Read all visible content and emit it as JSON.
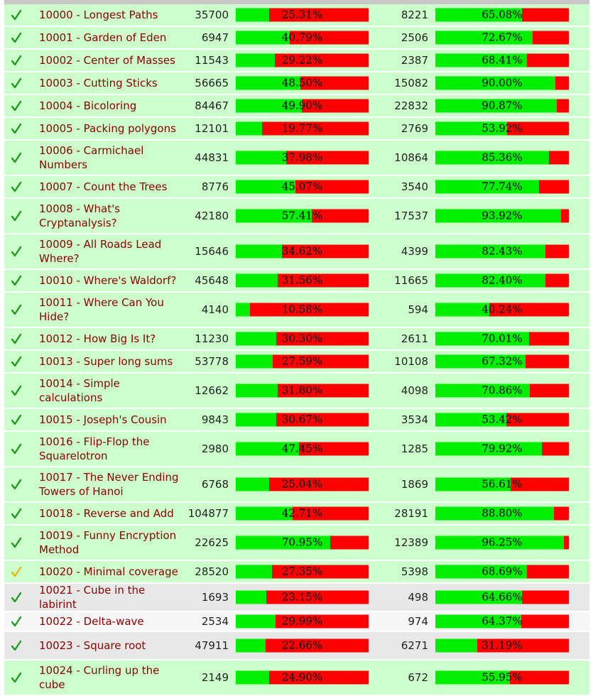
{
  "colors": {
    "row_accepted": "#ccffcc",
    "row_grey": "#e8e8e8",
    "row_light": "#f6f6f6",
    "bar_green": "#00ee00",
    "bar_red": "#ff0000",
    "title_link": "#8b0000",
    "check_green": "#1e9b1e",
    "check_yellow": "#e6b800"
  },
  "problems": [
    {
      "title": "10000 - Longest Paths",
      "submissions": "35700",
      "sub_ratio": "25.31%",
      "sub_value": 25.31,
      "users": "8221",
      "user_ratio": "65.08%",
      "user_value": 65.08,
      "status_icon": "check-green-icon",
      "row_bg": "accepted"
    },
    {
      "title": "10001 - Garden of Eden",
      "submissions": "6947",
      "sub_ratio": "40.79%",
      "sub_value": 40.79,
      "users": "2506",
      "user_ratio": "72.67%",
      "user_value": 72.67,
      "status_icon": "check-green-icon",
      "row_bg": "accepted"
    },
    {
      "title": "10002 - Center of Masses",
      "submissions": "11543",
      "sub_ratio": "29.22%",
      "sub_value": 29.22,
      "users": "2387",
      "user_ratio": "68.41%",
      "user_value": 68.41,
      "status_icon": "check-green-icon",
      "row_bg": "accepted"
    },
    {
      "title": "10003 - Cutting Sticks",
      "submissions": "56665",
      "sub_ratio": "48.50%",
      "sub_value": 48.5,
      "users": "15082",
      "user_ratio": "90.00%",
      "user_value": 90.0,
      "status_icon": "check-green-icon",
      "row_bg": "accepted"
    },
    {
      "title": "10004 - Bicoloring",
      "submissions": "84467",
      "sub_ratio": "49.90%",
      "sub_value": 49.9,
      "users": "22832",
      "user_ratio": "90.87%",
      "user_value": 90.87,
      "status_icon": "check-green-icon",
      "row_bg": "accepted"
    },
    {
      "title": "10005 - Packing polygons",
      "submissions": "12101",
      "sub_ratio": "19.77%",
      "sub_value": 19.77,
      "users": "2769",
      "user_ratio": "53.92%",
      "user_value": 53.92,
      "status_icon": "check-green-icon",
      "row_bg": "accepted"
    },
    {
      "title": "10006 - Carmichael Numbers",
      "submissions": "44831",
      "sub_ratio": "37.98%",
      "sub_value": 37.98,
      "users": "10864",
      "user_ratio": "85.36%",
      "user_value": 85.36,
      "status_icon": "check-green-icon",
      "row_bg": "accepted"
    },
    {
      "title": "10007 - Count the Trees",
      "submissions": "8776",
      "sub_ratio": "45.07%",
      "sub_value": 45.07,
      "users": "3540",
      "user_ratio": "77.74%",
      "user_value": 77.74,
      "status_icon": "check-green-icon",
      "row_bg": "accepted"
    },
    {
      "title": "10008 - What's Cryptanalysis?",
      "submissions": "42180",
      "sub_ratio": "57.41%",
      "sub_value": 57.41,
      "users": "17537",
      "user_ratio": "93.92%",
      "user_value": 93.92,
      "status_icon": "check-green-icon",
      "row_bg": "accepted"
    },
    {
      "title": "10009 - All Roads Lead Where?",
      "submissions": "15646",
      "sub_ratio": "34.62%",
      "sub_value": 34.62,
      "users": "4399",
      "user_ratio": "82.43%",
      "user_value": 82.43,
      "status_icon": "check-green-icon",
      "row_bg": "accepted"
    },
    {
      "title": "10010 - Where's Waldorf?",
      "submissions": "45648",
      "sub_ratio": "31.56%",
      "sub_value": 31.56,
      "users": "11665",
      "user_ratio": "82.40%",
      "user_value": 82.4,
      "status_icon": "check-green-icon",
      "row_bg": "accepted"
    },
    {
      "title": "10011 - Where Can You Hide?",
      "submissions": "4140",
      "sub_ratio": "10.58%",
      "sub_value": 10.58,
      "users": "594",
      "user_ratio": "40.24%",
      "user_value": 40.24,
      "status_icon": "check-green-icon",
      "row_bg": "accepted"
    },
    {
      "title": "10012 - How Big Is It?",
      "submissions": "11230",
      "sub_ratio": "30.30%",
      "sub_value": 30.3,
      "users": "2611",
      "user_ratio": "70.01%",
      "user_value": 70.01,
      "status_icon": "check-green-icon",
      "row_bg": "accepted"
    },
    {
      "title": "10013 - Super long sums",
      "submissions": "53778",
      "sub_ratio": "27.59%",
      "sub_value": 27.59,
      "users": "10108",
      "user_ratio": "67.32%",
      "user_value": 67.32,
      "status_icon": "check-green-icon",
      "row_bg": "accepted"
    },
    {
      "title": "10014 - Simple calculations",
      "submissions": "12662",
      "sub_ratio": "31.80%",
      "sub_value": 31.8,
      "users": "4098",
      "user_ratio": "70.86%",
      "user_value": 70.86,
      "status_icon": "check-green-icon",
      "row_bg": "accepted"
    },
    {
      "title": "10015 - Joseph's Cousin",
      "submissions": "9843",
      "sub_ratio": "30.67%",
      "sub_value": 30.67,
      "users": "3534",
      "user_ratio": "53.42%",
      "user_value": 53.42,
      "status_icon": "check-green-icon",
      "row_bg": "accepted"
    },
    {
      "title": "10016 - Flip-Flop the Squarelotron",
      "submissions": "2980",
      "sub_ratio": "47.45%",
      "sub_value": 47.45,
      "users": "1285",
      "user_ratio": "79.92%",
      "user_value": 79.92,
      "status_icon": "check-green-icon",
      "row_bg": "accepted"
    },
    {
      "title": "10017 - The Never Ending Towers of Hanoi",
      "submissions": "6768",
      "sub_ratio": "25.04%",
      "sub_value": 25.04,
      "users": "1869",
      "user_ratio": "56.61%",
      "user_value": 56.61,
      "status_icon": "check-green-icon",
      "row_bg": "accepted"
    },
    {
      "title": "10018 - Reverse and Add",
      "submissions": "104877",
      "sub_ratio": "42.71%",
      "sub_value": 42.71,
      "users": "28191",
      "user_ratio": "88.80%",
      "user_value": 88.8,
      "status_icon": "check-green-icon",
      "row_bg": "accepted"
    },
    {
      "title": "10019 - Funny Encryption Method",
      "submissions": "22625",
      "sub_ratio": "70.95%",
      "sub_value": 70.95,
      "users": "12389",
      "user_ratio": "96.25%",
      "user_value": 96.25,
      "status_icon": "check-green-icon",
      "row_bg": "accepted"
    },
    {
      "title": "10020 - Minimal coverage",
      "submissions": "28520",
      "sub_ratio": "27.35%",
      "sub_value": 27.35,
      "users": "5398",
      "user_ratio": "68.69%",
      "user_value": 68.69,
      "status_icon": "check-yellow-icon",
      "row_bg": "accepted"
    },
    {
      "title": "10021 - Cube in the labirint",
      "submissions": "1693",
      "sub_ratio": "23.15%",
      "sub_value": 23.15,
      "users": "498",
      "user_ratio": "64.66%",
      "user_value": 64.66,
      "status_icon": "check-green-icon",
      "row_bg": "grey"
    },
    {
      "title": "10022 - Delta-wave",
      "submissions": "2534",
      "sub_ratio": "29.99%",
      "sub_value": 29.99,
      "users": "974",
      "user_ratio": "64.37%",
      "user_value": 64.37,
      "status_icon": "check-green-icon",
      "row_bg": "light"
    },
    {
      "title": "10023 - Square root",
      "submissions": "47911",
      "sub_ratio": "22.66%",
      "sub_value": 22.66,
      "users": "6271",
      "user_ratio": "31.19%",
      "user_value": 31.19,
      "status_icon": "check-green-icon",
      "row_bg": "grey"
    },
    {
      "title": "10024 - Curling up the cube",
      "submissions": "2149",
      "sub_ratio": "24.90%",
      "sub_value": 24.9,
      "users": "672",
      "user_ratio": "55.95%",
      "user_value": 55.95,
      "status_icon": "check-green-icon",
      "row_bg": "accepted"
    }
  ]
}
